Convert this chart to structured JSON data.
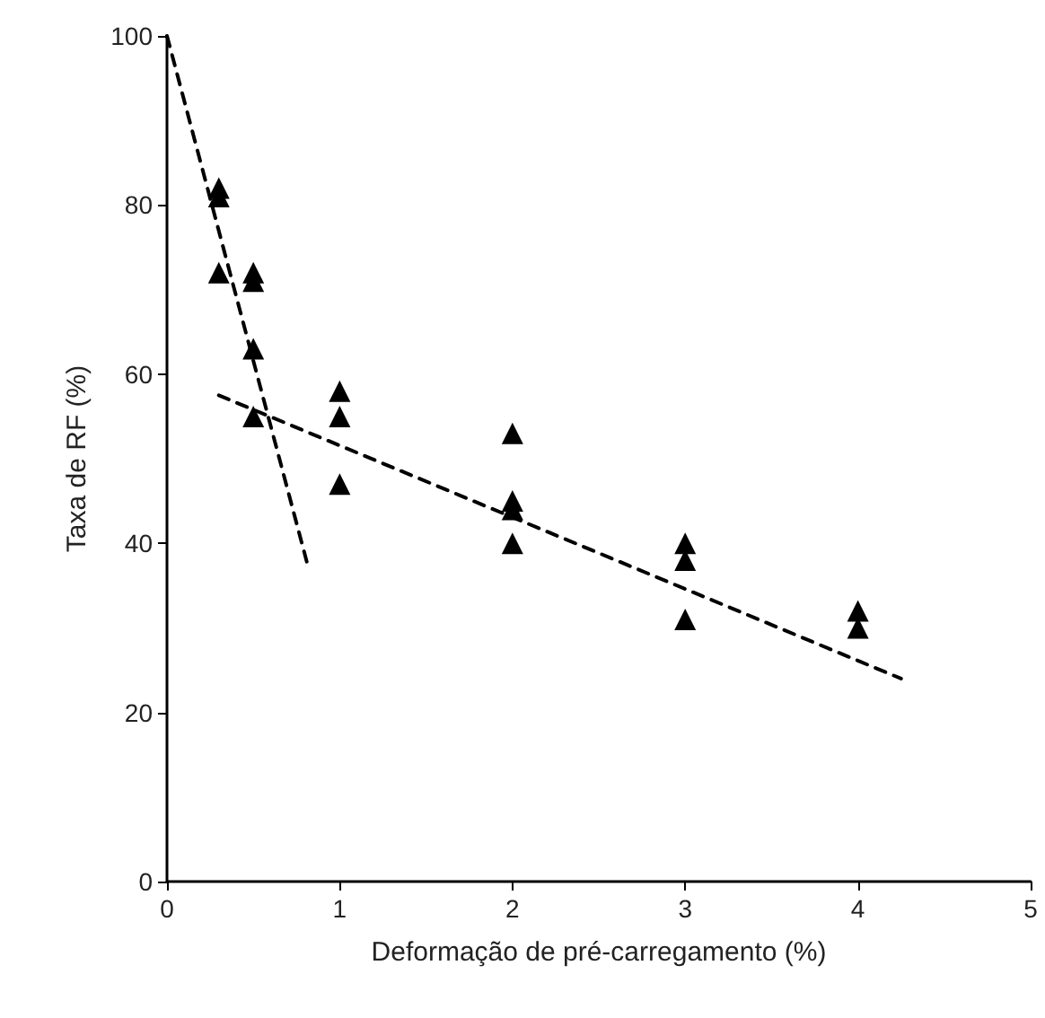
{
  "chart_data": {
    "type": "scatter",
    "xlabel": "Deformação de pré-carregamento (%)",
    "ylabel": "Taxa de RF (%)",
    "xlim": [
      0,
      5
    ],
    "xticks": [
      0,
      1,
      2,
      3,
      4,
      5
    ],
    "ylim": [
      0,
      100
    ],
    "yticks": [
      0,
      20,
      40,
      60,
      80,
      100
    ],
    "marker": "triangle",
    "series": [
      {
        "color": "#000000",
        "x": [
          0.3,
          0.3,
          0.3,
          0.5,
          0.5,
          0.5,
          0.5,
          1,
          1,
          1,
          2,
          2,
          2,
          2,
          3,
          3,
          3,
          4,
          4
        ],
        "values": [
          82,
          81,
          72,
          72,
          71,
          63,
          55,
          58,
          55,
          47,
          53,
          45,
          44,
          40,
          40,
          38,
          31,
          32,
          30
        ]
      },
      {
        "type": "line",
        "color": "#000000",
        "line_style": "dashed",
        "marker": "none",
        "x": [
          0,
          0.82
        ],
        "values": [
          100,
          37
        ]
      },
      {
        "type": "line",
        "color": "#000000",
        "line_style": "dashed",
        "marker": "none",
        "x": [
          0.3,
          4.25
        ],
        "values": [
          57.5,
          24
        ]
      }
    ]
  }
}
